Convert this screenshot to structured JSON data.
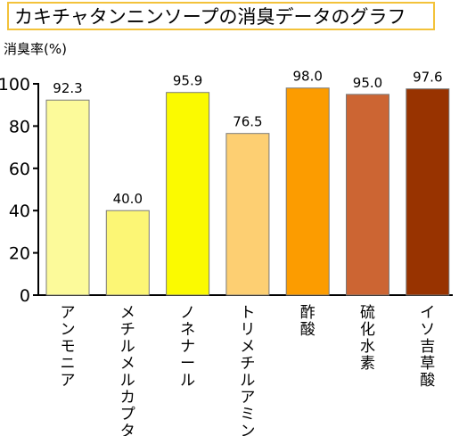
{
  "chart_data": {
    "type": "bar",
    "title": "カキチャタンニンソープの消臭データのグラフ",
    "ylabel": "消臭率(%)",
    "xlabel": "",
    "ylim": [
      0,
      100
    ],
    "yticks": [
      0,
      20,
      40,
      60,
      80,
      100
    ],
    "grid": false,
    "categories": [
      "アンモニア",
      "メチルメルカプタン",
      "ノネナール",
      "トリメチルアミン",
      "酢酸",
      "硫化水素",
      "イソ吉草酸"
    ],
    "values": [
      92.3,
      40.0,
      95.9,
      76.5,
      98.0,
      95.0,
      97.6
    ],
    "value_labels": [
      "92.3",
      "40.0",
      "95.9",
      "76.5",
      "98.0",
      "95.0",
      "97.6"
    ],
    "colors": [
      "#fcfa9a",
      "#fcf675",
      "#fbfa00",
      "#fdcf72",
      "#fc9c00",
      "#cc6533",
      "#983300"
    ]
  }
}
